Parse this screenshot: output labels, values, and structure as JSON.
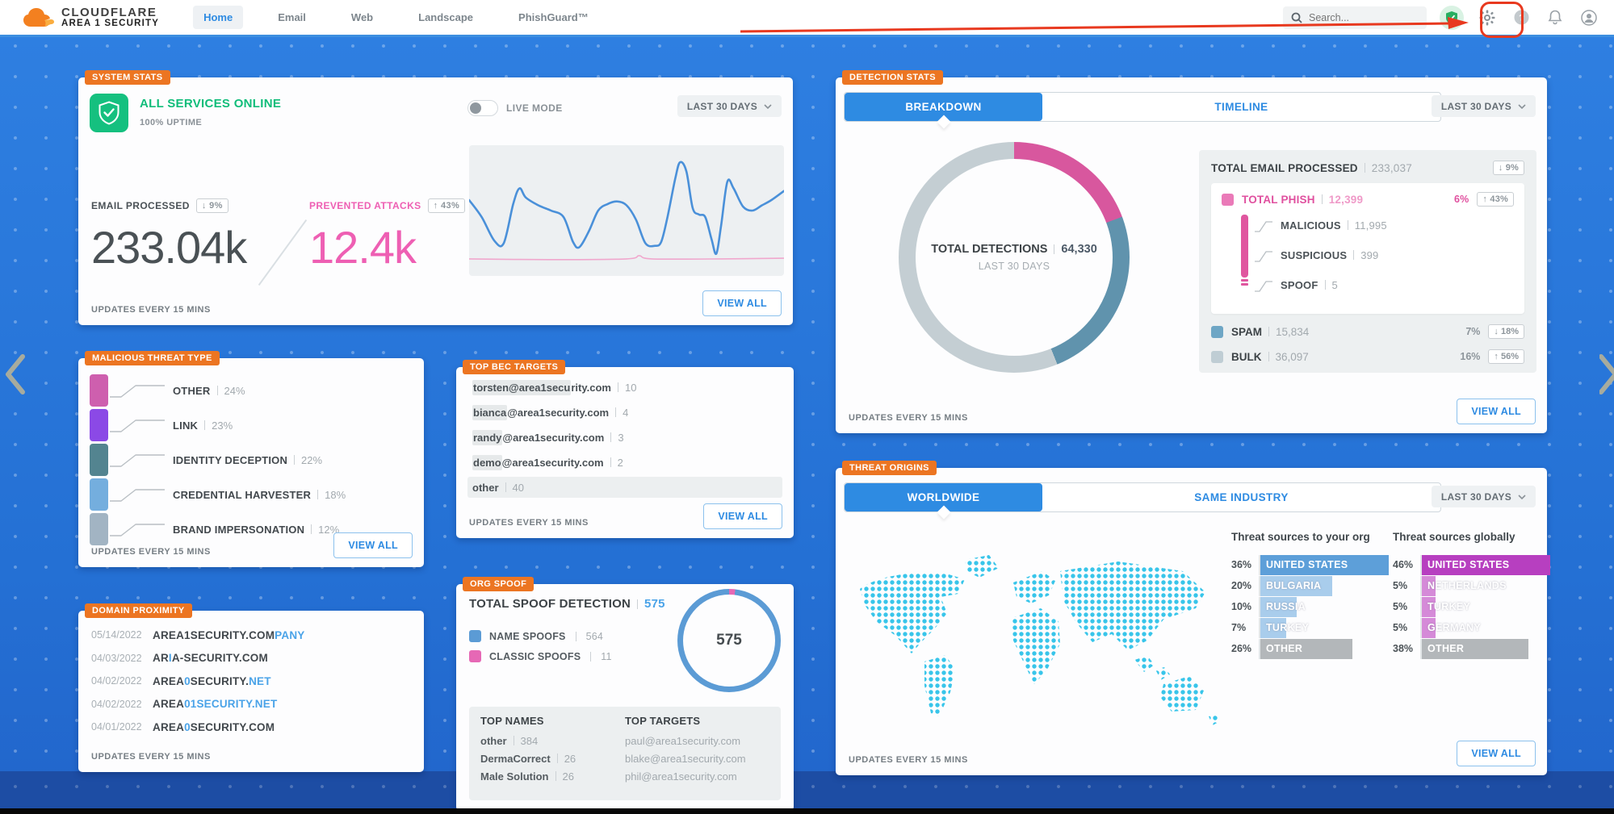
{
  "header": {
    "brand_top": "CLOUDFLARE",
    "brand_bottom": "AREA 1 SECURITY",
    "nav": [
      {
        "label": "Home",
        "cls": "active"
      },
      {
        "label": "Email",
        "cls": ""
      },
      {
        "label": "Web",
        "cls": ""
      },
      {
        "label": "Landscape",
        "cls": ""
      },
      {
        "label": "PhishGuard™",
        "cls": ""
      }
    ],
    "search_placeholder": "Search..."
  },
  "common": {
    "updates": "UPDATES EVERY 15 MINS",
    "view_all": "VIEW ALL",
    "range": "LAST 30 DAYS"
  },
  "colors": {
    "accent_blue": "#2e8be2",
    "background_blue": "#2470d4",
    "tag_orange": "#ec7522",
    "status_green": "#15c07f",
    "phish_pink": "#e0569f",
    "annotation_red": "#e8391f"
  },
  "system_stats": {
    "label": "SYSTEM STATS",
    "status_title": "ALL SERVICES ONLINE",
    "uptime": "100% UPTIME",
    "live_mode": "LIVE MODE",
    "email_processed": {
      "label": "EMAIL PROCESSED",
      "delta": "↓ 9%",
      "value": "233.04k"
    },
    "prevented_attacks": {
      "label": "PREVENTED ATTACKS",
      "delta": "↑ 43%",
      "value": "12.4k"
    }
  },
  "malicious_threat_type": {
    "label": "MALICIOUS THREAT TYPE",
    "items": [
      {
        "name": "OTHER",
        "pct": "24%",
        "color": "#ce5fae"
      },
      {
        "name": "LINK",
        "pct": "23%",
        "color": "#8b49e6"
      },
      {
        "name": "IDENTITY DECEPTION",
        "pct": "22%",
        "color": "#538490"
      },
      {
        "name": "CREDENTIAL HARVESTER",
        "pct": "18%",
        "color": "#74aede"
      },
      {
        "name": "BRAND IMPERSONATION",
        "pct": "12%",
        "color": "#a2b4c3"
      }
    ]
  },
  "domain_proximity": {
    "label": "DOMAIN PROXIMITY",
    "rows": [
      {
        "date": "05/14/2022",
        "segments": [
          {
            "text": "AREA1SECURITY.COM"
          },
          {
            "text": "PANY",
            "cls": "blue"
          }
        ]
      },
      {
        "date": "04/03/2022",
        "segments": [
          {
            "text": "AR"
          },
          {
            "text": "I",
            "cls": "blue"
          },
          {
            "text": "A-SECURITY.COM"
          }
        ]
      },
      {
        "date": "04/02/2022",
        "segments": [
          {
            "text": "AREA"
          },
          {
            "text": "0",
            "cls": "blue"
          },
          {
            "text": "SECURITY."
          },
          {
            "text": "NET",
            "cls": "blue"
          }
        ]
      },
      {
        "date": "04/02/2022",
        "segments": [
          {
            "text": "AREA"
          },
          {
            "text": "01SECURITY.NET",
            "cls": "blue"
          }
        ]
      },
      {
        "date": "04/01/2022",
        "segments": [
          {
            "text": "AREA"
          },
          {
            "text": "0",
            "cls": "blue"
          },
          {
            "text": "SECURITY.COM"
          }
        ]
      }
    ]
  },
  "top_bec_targets": {
    "label": "TOP BEC TARGETS",
    "rows": [
      {
        "segments": [
          {
            "text": "torsten@area1secu",
            "cls": "hl"
          },
          {
            "text": "rity.com"
          }
        ],
        "count": "10",
        "cls": ""
      },
      {
        "segments": [
          {
            "text": "bianca",
            "cls": "hl"
          },
          {
            "text": "@area1security.com"
          }
        ],
        "count": "4",
        "cls": ""
      },
      {
        "segments": [
          {
            "text": "randy",
            "cls": "hl"
          },
          {
            "text": "@area1security.com"
          }
        ],
        "count": "3",
        "cls": ""
      },
      {
        "segments": [
          {
            "text": "demo",
            "cls": "hl"
          },
          {
            "text": "@area1security.com"
          }
        ],
        "count": "2",
        "cls": ""
      },
      {
        "segments": [
          {
            "text": "other"
          }
        ],
        "count": "40",
        "cls": "row-full"
      }
    ]
  },
  "org_spoof": {
    "label": "ORG SPOOF",
    "title": "TOTAL SPOOF DETECTION",
    "total": "575",
    "legend": [
      {
        "name": "NAME SPOOFS",
        "count": "564",
        "color": "#5b9bd5"
      },
      {
        "name": "CLASSIC SPOOFS",
        "count": "11",
        "color": "#e668b5"
      }
    ],
    "donut_center": "575",
    "top_names": {
      "header": "TOP NAMES",
      "rows": [
        {
          "name": "other",
          "count": "384"
        },
        {
          "name": "DermaCorrect",
          "count": "26"
        },
        {
          "name": "Male Solution",
          "count": "26"
        }
      ]
    },
    "top_targets": {
      "header": "TOP TARGETS",
      "rows": [
        {
          "email": "paul@area1security.com"
        },
        {
          "email": "blake@area1security.com"
        },
        {
          "email": "phil@area1security.com"
        }
      ]
    }
  },
  "detection_stats": {
    "label": "DETECTION STATS",
    "tabs": [
      "BREAKDOWN",
      "TIMELINE"
    ],
    "donut": {
      "center_label": "TOTAL DETECTIONS",
      "center_value": "64,330",
      "center_sub": "LAST 30 DAYS"
    },
    "total_email": {
      "label": "TOTAL EMAIL PROCESSED",
      "value": "233,037",
      "delta": "↓ 9%"
    },
    "phish": {
      "name": "TOTAL PHISH",
      "value": "12,399",
      "pct": "6%",
      "delta": "↑ 43%",
      "color": "#ea7ab8",
      "breakdown": [
        {
          "name": "MALICIOUS",
          "value": "11,995"
        },
        {
          "name": "SUSPICIOUS",
          "value": "399"
        },
        {
          "name": "SPOOF",
          "value": "5"
        }
      ]
    },
    "rows": [
      {
        "name": "SPAM",
        "value": "15,834",
        "pct": "7%",
        "delta": "↓ 18%",
        "color": "#6ea6c5"
      },
      {
        "name": "BULK",
        "value": "36,097",
        "pct": "16%",
        "delta": "↑ 56%",
        "color": "#bfcdd4"
      }
    ]
  },
  "threat_origins": {
    "label": "THREAT ORIGINS",
    "tabs": [
      "WORLDWIDE",
      "SAME INDUSTRY"
    ],
    "org": {
      "header": "Threat sources to your org",
      "bars": [
        {
          "pct": "36%",
          "label": "UNITED STATES",
          "width": "100%",
          "color": "#5d9fd9",
          "cls": "bar-solid"
        },
        {
          "pct": "20%",
          "label": "BULGARIA",
          "width": "56%",
          "color": "#a9cdec",
          "cls": "bar-light"
        },
        {
          "pct": "10%",
          "label": "RUSSIA",
          "width": "28%",
          "color": "#a9cdec",
          "cls": "bar-light"
        },
        {
          "pct": "7%",
          "label": "TURKEY",
          "width": "20%",
          "color": "#a9cdec",
          "cls": "bar-light"
        },
        {
          "pct": "26%",
          "label": "OTHER",
          "width": "72%",
          "color": "#b3b7ba",
          "cls": "bar-solid"
        }
      ]
    },
    "global": {
      "header": "Threat sources globally",
      "bars": [
        {
          "pct": "46%",
          "label": "UNITED STATES",
          "width": "100%",
          "color": "#b73fc0",
          "cls": "bar-solid"
        },
        {
          "pct": "5%",
          "label": "NETHERLANDS",
          "width": "11%",
          "color": "#d58ad8",
          "cls": "bar-light"
        },
        {
          "pct": "5%",
          "label": "TURKEY",
          "width": "11%",
          "color": "#d58ad8",
          "cls": "bar-light"
        },
        {
          "pct": "5%",
          "label": "GERMANY",
          "width": "11%",
          "color": "#d58ad8",
          "cls": "bar-light"
        },
        {
          "pct": "38%",
          "label": "OTHER",
          "width": "83%",
          "color": "#b3b7ba",
          "cls": "bar-solid"
        }
      ]
    }
  },
  "chart_data": [
    {
      "id": "system-activity-sparkline",
      "type": "line",
      "note": "unlabeled 30-day activity sparkline; y is fraction from top of plot",
      "series": [
        {
          "name": "EMAIL PROCESSED",
          "color": "#4a90d9",
          "points": [
            [
              0,
              0.42
            ],
            [
              0.04,
              0.55
            ],
            [
              0.08,
              0.73
            ],
            [
              0.11,
              0.75
            ],
            [
              0.14,
              0.45
            ],
            [
              0.16,
              0.33
            ],
            [
              0.18,
              0.4
            ],
            [
              0.22,
              0.46
            ],
            [
              0.26,
              0.5
            ],
            [
              0.3,
              0.55
            ],
            [
              0.33,
              0.74
            ],
            [
              0.35,
              0.78
            ],
            [
              0.38,
              0.66
            ],
            [
              0.41,
              0.5
            ],
            [
              0.44,
              0.45
            ],
            [
              0.47,
              0.43
            ],
            [
              0.5,
              0.46
            ],
            [
              0.53,
              0.57
            ],
            [
              0.56,
              0.75
            ],
            [
              0.59,
              0.77
            ],
            [
              0.61,
              0.74
            ],
            [
              0.63,
              0.55
            ],
            [
              0.655,
              0.25
            ],
            [
              0.67,
              0.13
            ],
            [
              0.69,
              0.2
            ],
            [
              0.71,
              0.48
            ],
            [
              0.73,
              0.53
            ],
            [
              0.75,
              0.55
            ],
            [
              0.77,
              0.72
            ],
            [
              0.785,
              0.83
            ],
            [
              0.8,
              0.62
            ],
            [
              0.82,
              0.28
            ],
            [
              0.84,
              0.33
            ],
            [
              0.87,
              0.47
            ],
            [
              0.9,
              0.5
            ],
            [
              0.93,
              0.46
            ],
            [
              0.96,
              0.42
            ],
            [
              1,
              0.35
            ]
          ]
        },
        {
          "name": "PREVENTED ATTACKS",
          "color": "#f0a7cd",
          "points": [
            [
              0,
              0.87
            ],
            [
              0.25,
              0.875
            ],
            [
              0.5,
              0.87
            ],
            [
              0.54,
              0.845
            ],
            [
              0.58,
              0.87
            ],
            [
              0.8,
              0.87
            ],
            [
              1,
              0.865
            ]
          ]
        }
      ]
    },
    {
      "id": "detection-donut",
      "type": "donut",
      "total": 64330,
      "center_label": "TOTAL DETECTIONS",
      "period": "LAST 30 DAYS",
      "slices": [
        {
          "label": "TOTAL PHISH",
          "value": 12399,
          "color": "#d8579e"
        },
        {
          "label": "SPAM",
          "value": 15834,
          "color": "#6093ad"
        },
        {
          "label": "BULK",
          "value": 36097,
          "color": "#c4ced3"
        }
      ]
    },
    {
      "id": "spoof-donut",
      "type": "donut",
      "total": 575,
      "slices": [
        {
          "label": "CLASSIC SPOOFS",
          "value": 11,
          "color": "#e668b5"
        },
        {
          "label": "NAME SPOOFS",
          "value": 564,
          "color": "#5b9bd5"
        }
      ]
    },
    {
      "id": "malicious-threat-type",
      "type": "bar",
      "unit": "%",
      "categories": [
        "OTHER",
        "LINK",
        "IDENTITY DECEPTION",
        "CREDENTIAL HARVESTER",
        "BRAND IMPERSONATION"
      ],
      "values": [
        24,
        23,
        22,
        18,
        12
      ]
    },
    {
      "id": "threat-sources-org",
      "type": "bar",
      "unit": "%",
      "title": "Threat sources to your org",
      "categories": [
        "UNITED STATES",
        "BULGARIA",
        "RUSSIA",
        "TURKEY",
        "OTHER"
      ],
      "values": [
        36,
        20,
        10,
        7,
        26
      ]
    },
    {
      "id": "threat-sources-global",
      "type": "bar",
      "unit": "%",
      "title": "Threat sources globally",
      "categories": [
        "UNITED STATES",
        "NETHERLANDS",
        "TURKEY",
        "GERMANY",
        "OTHER"
      ],
      "values": [
        46,
        5,
        5,
        5,
        38
      ]
    }
  ]
}
